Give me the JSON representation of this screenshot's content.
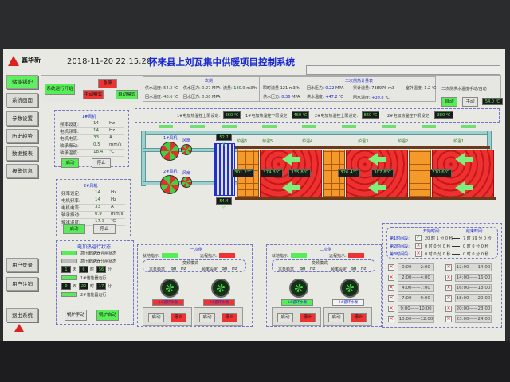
{
  "header": {
    "datetime": "2018-11-20 22:15:20",
    "title": "怀来县上刘瓦集中供暖项目控制系统",
    "brand_logo": "鑫华新 SUNhouse"
  },
  "nav": {
    "items": [
      {
        "label": "储能锅炉",
        "active": true
      },
      {
        "label": "系统画面"
      },
      {
        "label": "参数设置"
      },
      {
        "label": "历史趋势"
      },
      {
        "label": "数据报表"
      },
      {
        "label": "报警信息"
      }
    ],
    "bottom": [
      {
        "label": "用户登录"
      },
      {
        "label": "用户注销"
      },
      {
        "label": "退出系统"
      }
    ]
  },
  "controls": {
    "start": "系统运行开始",
    "estop": "急停",
    "manual": "手动模式",
    "auto": "自动模式"
  },
  "primary": {
    "title": "一次侧",
    "supply_temp_label": "供水温度:",
    "supply_temp": "54.2",
    "return_temp_label": "回水温度:",
    "return_temp": "48.6",
    "unit_c": "℃",
    "supply_press_label": "供水压力:",
    "supply_press": "0.27",
    "return_press_label": "回水压力:",
    "return_press": "0.38",
    "unit_mpa": "MPA",
    "flow_label": "流量:",
    "flow": "180.9",
    "unit_flow": "m3/h"
  },
  "secondary_meter": {
    "title": "二次侧热计量表",
    "inst_flow_label": "瞬时流量",
    "inst_flow": "121",
    "inst_flow_unit": "m3/h",
    "return_press_label": "回水压力:",
    "return_press": "0.22",
    "supply_press_label": "供水压力:",
    "supply_press": "0.36",
    "unit_mpa": "MPA",
    "total_flow_label": "累计流量:",
    "total_flow": "738976",
    "total_unit": "m3",
    "supply_temp_label": "供水温度:",
    "supply_temp": "+47.2",
    "return_temp_label": "回水温度:",
    "return_temp": "+39.8",
    "outdoor_label": "室外温度:",
    "outdoor": "1.2",
    "unit_c": "℃"
  },
  "sec_temp_ctrl": {
    "label": "二次侧供水温度手动/自动",
    "auto": "自动",
    "manual": "手动",
    "value": "54.0 ℃"
  },
  "setpoints": [
    {
      "label": "1#电加热温控上限设定:",
      "value": "860",
      "unit": "℃"
    },
    {
      "label": "1#电加热温控下限设定:",
      "value": "460",
      "unit": "℃"
    },
    {
      "label": "2#电加热温控上限设定:",
      "value": "860",
      "unit": "℃"
    },
    {
      "label": "2#电加热温控下限设定:",
      "value": "380",
      "unit": "℃"
    }
  ],
  "fans": [
    {
      "title": "1#风机",
      "rows": [
        {
          "label": "频率设定:",
          "value": "14",
          "unit": "Hz"
        },
        {
          "label": "电机频率:",
          "value": "14",
          "unit": "Hz"
        },
        {
          "label": "电机电流:",
          "value": "33",
          "unit": "A"
        },
        {
          "label": "轴承振动:",
          "value": "0.5",
          "unit": "mm/s"
        },
        {
          "label": "轴承温度:",
          "value": "18.4",
          "unit": "℃"
        }
      ],
      "start": "启动",
      "stop": "停止"
    },
    {
      "title": "2#风机",
      "rows": [
        {
          "label": "频率设定:",
          "value": "14",
          "unit": "Hz"
        },
        {
          "label": "电机频率:",
          "value": "14",
          "unit": "Hz"
        },
        {
          "label": "电机电流:",
          "value": "33",
          "unit": "A"
        },
        {
          "label": "轴承振动:",
          "value": "0.9",
          "unit": "mm/s"
        },
        {
          "label": "轴承温度:",
          "value": "17.9",
          "unit": "℃"
        }
      ],
      "start": "启动",
      "stop": "停止"
    }
  ],
  "diagram": {
    "fan1": "1#风机",
    "fan2": "2#风机",
    "damper": "风扇",
    "in_temp": "52.7 ℃",
    "out_temp": "54.4 ℃",
    "zones": [
      "炉温6",
      "炉温5",
      "炉温4",
      "炉温3",
      "炉温2",
      "炉温1"
    ],
    "temps": [
      "301.2℃",
      "374.3℃",
      "335.8℃",
      "326.4℃",
      "307.8℃",
      "270.6℃"
    ]
  },
  "heater_status": {
    "title": "电加热运行状态",
    "hv_close": "高压断路器合闸状态",
    "hv_open": "高压断路器分闸状态",
    "r1": {
      "d": "1",
      "d_unit": "天",
      "h": "6",
      "h_unit": "时",
      "m": "56",
      "m_unit": "分"
    },
    "heater1": "1#储能器运行",
    "r2": {
      "d": "0",
      "d_unit": "天",
      "h": "22",
      "h_unit": "时",
      "m": "17",
      "m_unit": "分"
    },
    "heater2": "2#储能器运行",
    "boiler_manual": "锅炉手动",
    "boiler_auto": "锅炉自动"
  },
  "pump_groups": [
    {
      "title": "一次侧",
      "run_label": "就地指示:",
      "remote_label": "远程指示:",
      "mode_title": "变频模式",
      "freq_label": "本泵频率",
      "freq_value": "50",
      "freq_unit": "Hz",
      "set_label": "频率设定",
      "set_value": "50",
      "set_unit": "Hz",
      "pumps": [
        {
          "name": "1#循环水泵",
          "start": "启动",
          "stop": "停止"
        },
        {
          "name": "2#循环水泵",
          "start": "启动",
          "stop": "停止"
        }
      ]
    },
    {
      "title": "二次侧",
      "run_label": "就地指示:",
      "remote_label": "远程指示:",
      "mode_title": "变频模式",
      "freq_label": "本泵频率",
      "freq_value": "50",
      "freq_unit": "Hz",
      "set_label": "频率设定",
      "set_value": "50",
      "set_unit": "Hz",
      "pumps": [
        {
          "name": "1#循环水泵",
          "start": "启动",
          "stop": "停止"
        },
        {
          "name": "2#循环水泵",
          "start": "启动",
          "stop": "停止"
        }
      ]
    }
  ],
  "schedule": {
    "start_header": "开始时间:",
    "end_header": "结束时间:",
    "rows": [
      {
        "label": "第1时间段:",
        "checked": true,
        "start": "20 时 1 分 0  秒",
        "end": "7 时 59 分 0  秒"
      },
      {
        "label": "第2时间段:",
        "checked": false,
        "start": "0 时 0 分 0  秒",
        "end": "0 时 0 分 0  秒"
      },
      {
        "label": "第3时间段:",
        "checked": false,
        "start": "0 时 0 分 0  秒",
        "end": "0 时 0 分 0  秒"
      }
    ],
    "slots": [
      "0:00——2:00",
      "2:00——4:00",
      "4:00——7:00",
      "7:00——9:00",
      "9:00——10:00",
      "10:00——12:00",
      "12:00——14:00",
      "14:00——16:00",
      "16:00——18:00",
      "18:00——20:00",
      "20:00——23:00",
      "23:00——24:00"
    ]
  },
  "colors": {
    "green": "#55ee55",
    "red": "#ee3333",
    "title_blue": "#1a2ad0",
    "screen_bg": "#e9e9e4"
  }
}
